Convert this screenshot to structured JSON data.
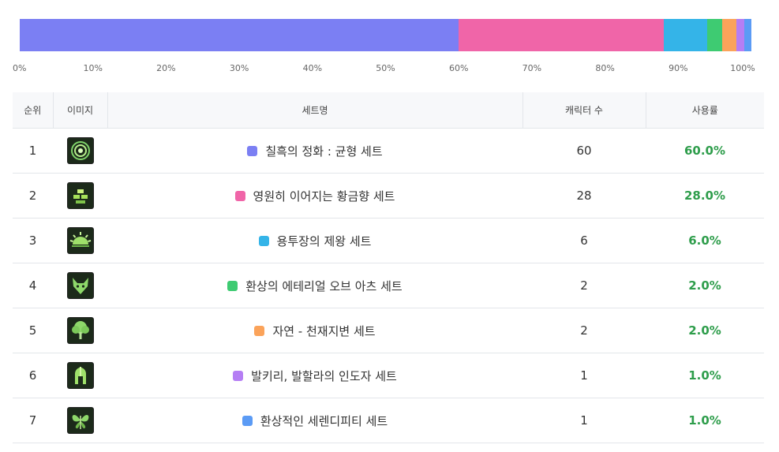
{
  "chart_data": {
    "type": "bar",
    "orientation": "horizontal-stacked-100",
    "xlim": [
      0,
      100
    ],
    "xticks": [
      "0%",
      "10%",
      "20%",
      "30%",
      "40%",
      "50%",
      "60%",
      "70%",
      "80%",
      "90%",
      "100%"
    ],
    "series": [
      {
        "name": "칠흑의 정화 : 균형 세트",
        "value": 60.0,
        "color": "#7b7ff3"
      },
      {
        "name": "영원히 이어지는 황금향 세트",
        "value": 28.0,
        "color": "#f065a8"
      },
      {
        "name": "용투장의 제왕 세트",
        "value": 6.0,
        "color": "#34b4e8"
      },
      {
        "name": "환상의 에테리얼 오브 아츠 세트",
        "value": 2.0,
        "color": "#3ecb72"
      },
      {
        "name": "자연 - 천재지변 세트",
        "value": 2.0,
        "color": "#fba35a"
      },
      {
        "name": "발키리, 발할라의 인도자 세트",
        "value": 1.0,
        "color": "#b57ef4"
      },
      {
        "name": "환상적인 세렌디피티 세트",
        "value": 1.0,
        "color": "#5b9bf5"
      }
    ]
  },
  "table": {
    "headers": {
      "rank": "순위",
      "image": "이미지",
      "name": "세트명",
      "count": "캐릭터 수",
      "rate": "사용률"
    },
    "rows": [
      {
        "rank": "1",
        "icon": "swirl-icon",
        "name": "칠흑의 정화 : 균형 세트",
        "count": "60",
        "rate": "60.0%",
        "color": "#7b7ff3"
      },
      {
        "rank": "2",
        "icon": "gold-bars-icon",
        "name": "영원히 이어지는 황금향 세트",
        "count": "28",
        "rate": "28.0%",
        "color": "#f065a8"
      },
      {
        "rank": "3",
        "icon": "sunrise-icon",
        "name": "용투장의 제왕 세트",
        "count": "6",
        "rate": "6.0%",
        "color": "#34b4e8"
      },
      {
        "rank": "4",
        "icon": "fox-mask-icon",
        "name": "환상의 에테리얼 오브 아츠 세트",
        "count": "2",
        "rate": "2.0%",
        "color": "#3ecb72"
      },
      {
        "rank": "5",
        "icon": "tree-icon",
        "name": "자연 - 천재지변 세트",
        "count": "2",
        "rate": "2.0%",
        "color": "#fba35a"
      },
      {
        "rank": "6",
        "icon": "helmet-icon",
        "name": "발키리, 발할라의 인도자 세트",
        "count": "1",
        "rate": "1.0%",
        "color": "#b57ef4"
      },
      {
        "rank": "7",
        "icon": "butterfly-icon",
        "name": "환상적인 세렌디피티 세트",
        "count": "1",
        "rate": "1.0%",
        "color": "#5b9bf5"
      }
    ]
  }
}
